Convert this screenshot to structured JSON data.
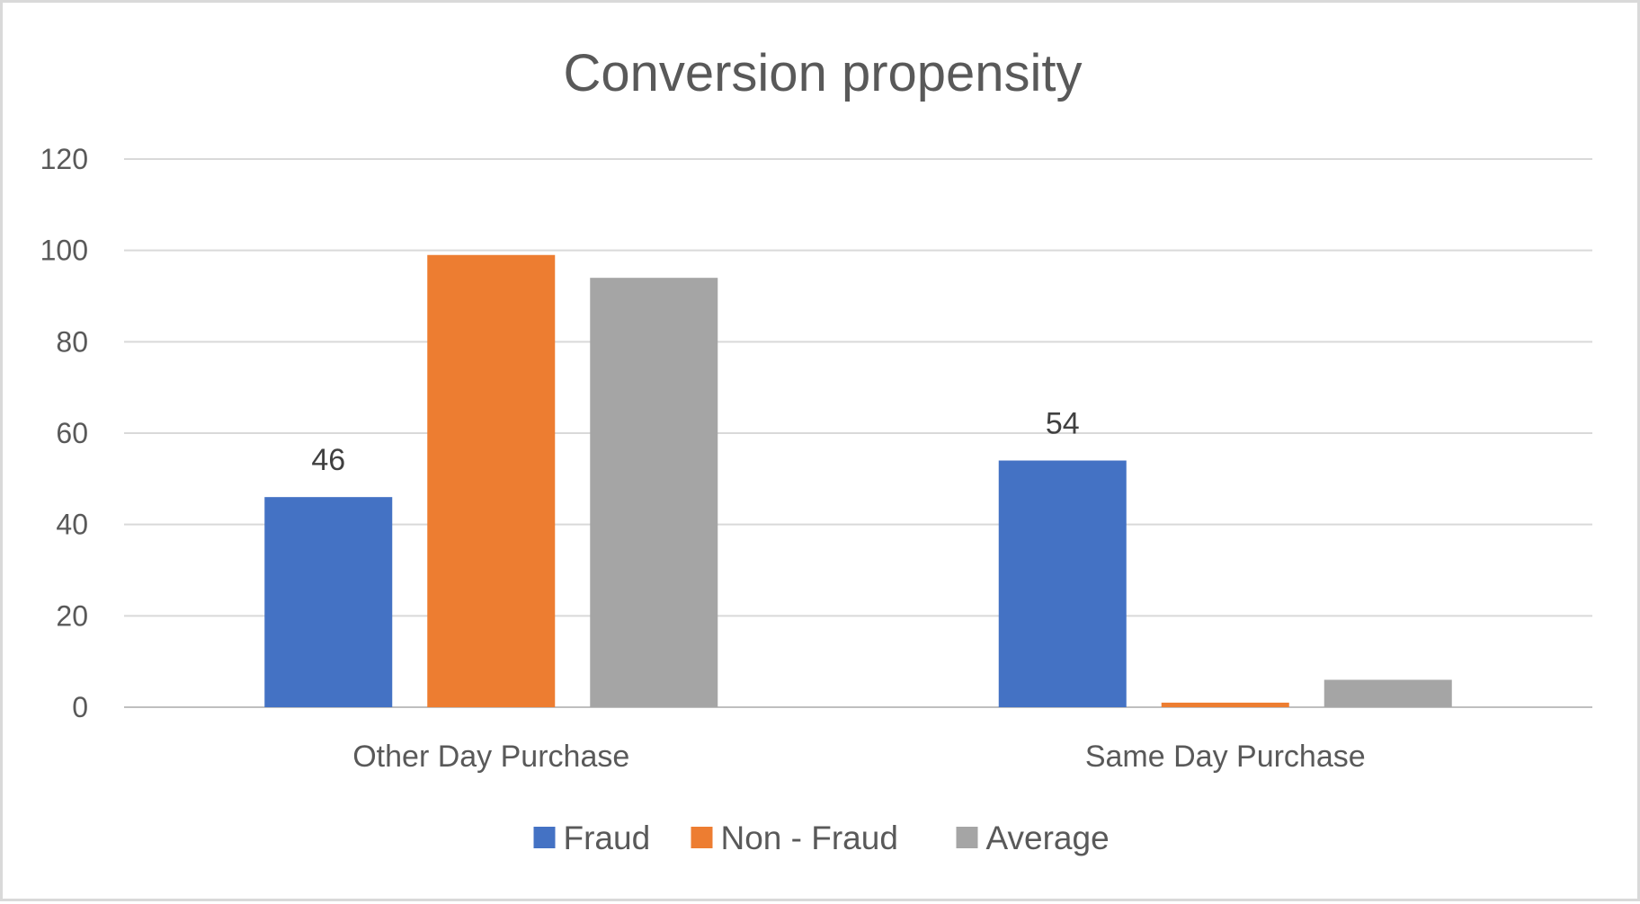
{
  "chart_data": {
    "type": "bar",
    "title": "Conversion propensity",
    "xlabel": "",
    "ylabel": "",
    "categories": [
      "Other Day Purchase",
      "Same Day Purchase"
    ],
    "series": [
      {
        "name": "Fraud",
        "values": [
          46,
          54
        ],
        "color": "#4472c4",
        "data_labels": [
          "46",
          "54"
        ]
      },
      {
        "name": "Non - Fraud",
        "values": [
          99,
          1
        ],
        "color": "#ed7d31"
      },
      {
        "name": "Average",
        "values": [
          94,
          6
        ],
        "color": "#a5a5a5"
      }
    ],
    "ylim": [
      0,
      120
    ],
    "yticks": [
      "0",
      "20",
      "40",
      "60",
      "80",
      "100",
      "120"
    ],
    "grid": true,
    "legend_position": "bottom"
  }
}
